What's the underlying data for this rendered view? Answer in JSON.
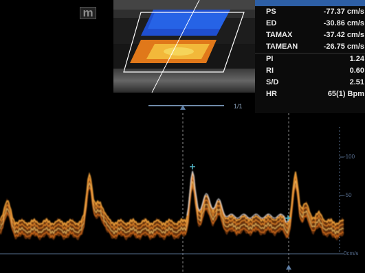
{
  "logo_text": "m",
  "measurements": [
    {
      "label": "PS",
      "value": "-77.37 cm/s"
    },
    {
      "label": "ED",
      "value": "-30.86 cm/s"
    },
    {
      "label": "TAMAX",
      "value": "-37.42 cm/s"
    },
    {
      "label": "TAMEAN",
      "value": "-26.75 cm/s"
    },
    {
      "label": "PI",
      "value": "1.24"
    },
    {
      "label": "RI",
      "value": "0.60"
    },
    {
      "label": "S/D",
      "value": "2.51"
    },
    {
      "label": "HR",
      "value": "65(1) Bpm"
    }
  ],
  "page_indicator": "1/1",
  "axis": {
    "tick_100": "-100",
    "tick_50": "-50",
    "baseline": "0cm/s"
  },
  "colors": {
    "panel_header": "#2d5fa6",
    "axis": "#586f91",
    "doppler": "#f0a23a",
    "marker": "#53b7c8"
  }
}
